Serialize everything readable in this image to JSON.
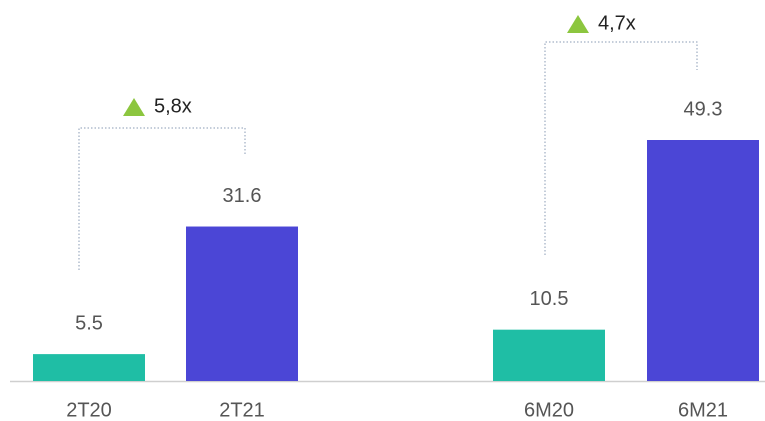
{
  "chart_data": {
    "type": "bar",
    "categories": [
      "2T20",
      "2T21",
      "6M20",
      "6M21"
    ],
    "values": [
      5.5,
      31.6,
      10.5,
      49.3
    ],
    "colors": [
      "#1fbea5",
      "#4b46d6",
      "#1fbea5",
      "#4b46d6"
    ],
    "annotations": [
      {
        "text": "5,8x"
      },
      {
        "text": "4,7x"
      }
    ]
  }
}
